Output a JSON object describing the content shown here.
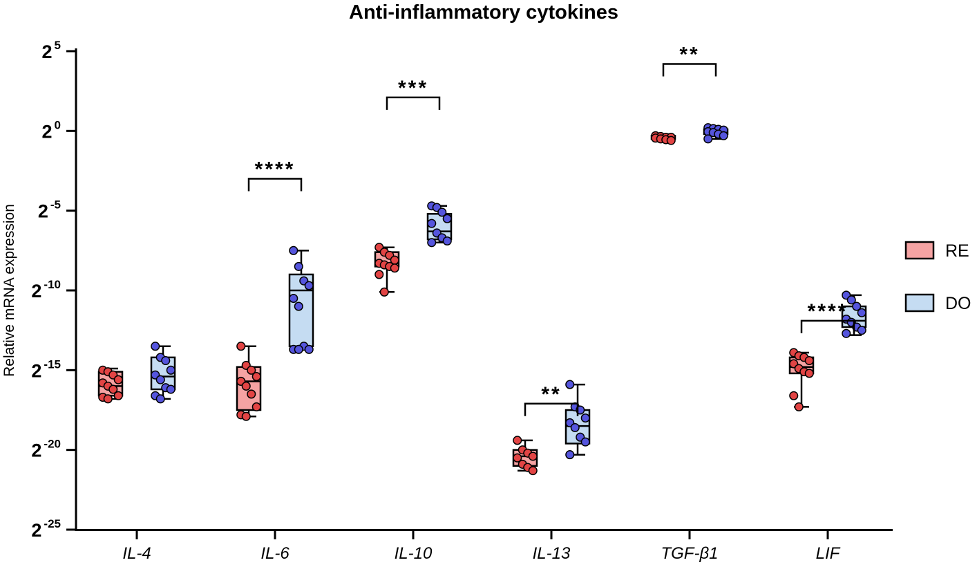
{
  "chart_data": {
    "type": "box",
    "title": "Anti-inflammatory cytokines",
    "ylabel": "Relative mRNA expression",
    "xlabel": "",
    "ylim_log2": [
      -25,
      5
    ],
    "yticks": [
      {
        "base": "2",
        "exp": "5",
        "value": 5
      },
      {
        "base": "2",
        "exp": "0",
        "value": 0
      },
      {
        "base": "2",
        "exp": "-5",
        "value": -5
      },
      {
        "base": "2",
        "exp": "-10",
        "value": -10
      },
      {
        "base": "2",
        "exp": "-15",
        "value": -15
      },
      {
        "base": "2",
        "exp": "-20",
        "value": -20
      },
      {
        "base": "2",
        "exp": "-25",
        "value": -25
      }
    ],
    "categories": [
      "IL-4",
      "IL-6",
      "IL-10",
      "IL-13",
      "TGF-β1",
      "LIF"
    ],
    "legend": [
      {
        "name": "RE",
        "fill": "#f5a3a3",
        "dot": "#e24444"
      },
      {
        "name": "DO",
        "fill": "#c5dcf2",
        "dot": "#5555dd"
      }
    ],
    "series": [
      {
        "name": "RE",
        "boxes": [
          {
            "min": -16.8,
            "q1": -16.6,
            "median": -16.0,
            "q3": -15.1,
            "max": -14.9
          },
          {
            "min": -17.9,
            "q1": -17.5,
            "median": -15.7,
            "q3": -14.8,
            "max": -13.5
          },
          {
            "min": -10.1,
            "q1": -8.5,
            "median": -8.3,
            "q3": -7.6,
            "max": -7.3
          },
          {
            "min": -21.3,
            "q1": -21.0,
            "median": -20.4,
            "q3": -20.0,
            "max": -19.4
          },
          {
            "min": -0.6,
            "q1": -0.5,
            "median": -0.4,
            "q3": -0.3,
            "max": -0.2
          },
          {
            "min": -17.3,
            "q1": -15.2,
            "median": -14.8,
            "q3": -14.2,
            "max": -13.9
          }
        ],
        "points": [
          [
            -15.0,
            -15.1,
            -15.3,
            -15.6,
            -15.8,
            -16.0,
            -16.2,
            -16.6,
            -16.7,
            -16.8
          ],
          [
            -13.5,
            -14.7,
            -15.0,
            -15.4,
            -15.7,
            -16.0,
            -16.5,
            -17.3,
            -17.8,
            -17.9
          ],
          [
            -7.3,
            -7.6,
            -7.8,
            -8.1,
            -8.3,
            -8.4,
            -8.5,
            -8.6,
            -9.0,
            -10.1
          ],
          [
            -19.4,
            -20.0,
            -20.2,
            -20.4,
            -20.5,
            -20.9,
            -21.1,
            -21.3
          ],
          [
            -0.3,
            -0.35,
            -0.4,
            -0.4,
            -0.45,
            -0.5,
            -0.55,
            -0.6
          ],
          [
            -13.9,
            -14.1,
            -14.2,
            -14.4,
            -14.6,
            -14.9,
            -15.1,
            -15.2,
            -16.6,
            -17.3
          ]
        ]
      },
      {
        "name": "DO",
        "boxes": [
          {
            "min": -16.8,
            "q1": -16.2,
            "median": -15.4,
            "q3": -14.2,
            "max": -13.5
          },
          {
            "min": -13.7,
            "q1": -13.5,
            "median": -10.0,
            "q3": -9.0,
            "max": -7.5
          },
          {
            "min": -7.0,
            "q1": -6.8,
            "median": -6.3,
            "q3": -5.2,
            "max": -4.7
          },
          {
            "min": -20.3,
            "q1": -19.6,
            "median": -18.5,
            "q3": -17.5,
            "max": -15.9
          },
          {
            "min": -0.5,
            "q1": -0.2,
            "median": 0.0,
            "q3": 0.1,
            "max": 0.2
          },
          {
            "min": -12.8,
            "q1": -12.3,
            "median": -11.9,
            "q3": -11.0,
            "max": -10.3
          }
        ],
        "points": [
          [
            -13.5,
            -14.2,
            -14.4,
            -15.0,
            -15.3,
            -15.6,
            -16.1,
            -16.2,
            -16.6,
            -16.8
          ],
          [
            -7.5,
            -8.5,
            -9.4,
            -9.7,
            -10.5,
            -11.0,
            -13.5,
            -13.7,
            -13.7,
            -13.7
          ],
          [
            -4.7,
            -4.8,
            -5.1,
            -5.5,
            -5.8,
            -6.4,
            -6.7,
            -6.9,
            -7.0
          ],
          [
            -15.9,
            -17.3,
            -17.5,
            -18.0,
            -18.3,
            -18.6,
            -19.2,
            -19.5,
            -20.3
          ],
          [
            0.2,
            0.15,
            0.1,
            0.05,
            -0.05,
            -0.1,
            -0.2,
            -0.3,
            -0.5
          ],
          [
            -10.3,
            -10.6,
            -11.0,
            -11.4,
            -11.8,
            -12.0,
            -12.3,
            -12.5,
            -12.7
          ]
        ]
      }
    ],
    "significance": [
      {
        "category": "IL-6",
        "label": "****",
        "level": -3.0
      },
      {
        "category": "IL-10",
        "label": "***",
        "level": 2.1
      },
      {
        "category": "IL-13",
        "label": "**",
        "level": -17.1
      },
      {
        "category": "TGF-β1",
        "label": "**",
        "level": 4.2
      },
      {
        "category": "LIF",
        "label": "****",
        "level": -11.9
      }
    ]
  }
}
